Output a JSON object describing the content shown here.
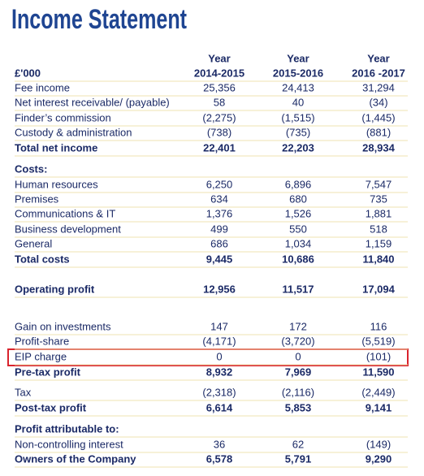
{
  "header": {
    "title": "Income Statement"
  },
  "table": {
    "unit": "£'000",
    "columns": [
      {
        "top": "Year",
        "bottom": "2014-2015"
      },
      {
        "top": "Year",
        "bottom": "2015-2016"
      },
      {
        "top": "Year",
        "bottom": "2016 -2017"
      }
    ],
    "rows": [
      {
        "label": "Fee income",
        "values": [
          "25,356",
          "24,413",
          "31,294"
        ]
      },
      {
        "label": "Net interest receivable/ (payable)",
        "values": [
          "58",
          "40",
          "(34)"
        ]
      },
      {
        "label": "Finder’s commission",
        "values": [
          "(2,275)",
          "(1,515)",
          "(1,445)"
        ]
      },
      {
        "label": "Custody & administration",
        "values": [
          "(738)",
          "(735)",
          "(881)"
        ]
      },
      {
        "label": "Total net income",
        "values": [
          "22,401",
          "22,203",
          "28,934"
        ]
      },
      {
        "label": "Costs:"
      },
      {
        "label": "Human resources",
        "values": [
          "6,250",
          "6,896",
          "7,547"
        ]
      },
      {
        "label": "Premises",
        "values": [
          "634",
          "680",
          "735"
        ]
      },
      {
        "label": "Communications & IT",
        "values": [
          "1,376",
          "1,526",
          "1,881"
        ]
      },
      {
        "label": "Business development",
        "values": [
          "499",
          "550",
          "518"
        ]
      },
      {
        "label": "General",
        "values": [
          "686",
          "1,034",
          "1,159"
        ]
      },
      {
        "label": "Total costs",
        "values": [
          "9,445",
          "10,686",
          "11,840"
        ]
      },
      {
        "label": "Operating profit",
        "values": [
          "12,956",
          "11,517",
          "17,094"
        ]
      },
      {
        "label": "Gain on investments",
        "values": [
          "147",
          "172",
          "116"
        ]
      },
      {
        "label": "Profit-share",
        "values": [
          "(4,171)",
          "(3,720)",
          "(5,519)"
        ]
      },
      {
        "label": "EIP charge",
        "values": [
          "0",
          "0",
          "(101)"
        ]
      },
      {
        "label": "Pre-tax profit",
        "values": [
          "8,932",
          "7,969",
          "11,590"
        ]
      },
      {
        "label": "Tax",
        "values": [
          "(2,318)",
          "(2,116)",
          "(2,449)"
        ]
      },
      {
        "label": "Post-tax profit",
        "values": [
          "6,614",
          "5,853",
          "9,141"
        ]
      },
      {
        "label": "Profit attributable to:"
      },
      {
        "label": "Non-controlling interest",
        "values": [
          "36",
          "62",
          "(149)"
        ]
      },
      {
        "label": "Owners of the Company",
        "values": [
          "6,578",
          "5,791",
          "9,290"
        ]
      }
    ]
  }
}
